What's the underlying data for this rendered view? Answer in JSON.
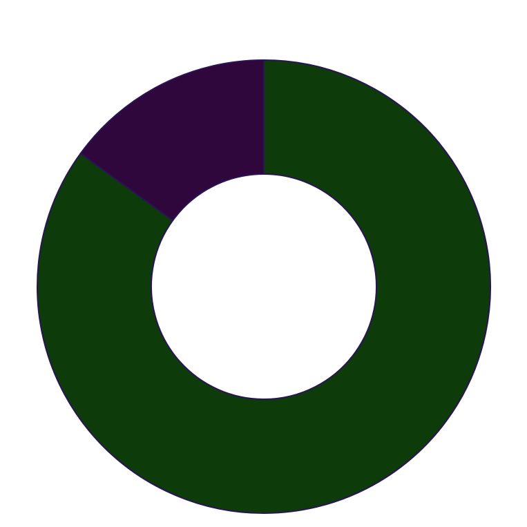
{
  "chart_data": {
    "type": "pie",
    "style": "donut",
    "start": "top",
    "direction": "clockwise",
    "slices": [
      {
        "value": 85,
        "color": "#0d3b0a"
      },
      {
        "value": 15,
        "color": "#2f073d"
      }
    ],
    "edge_color": "#2a1454",
    "legend": "none",
    "title": ""
  }
}
